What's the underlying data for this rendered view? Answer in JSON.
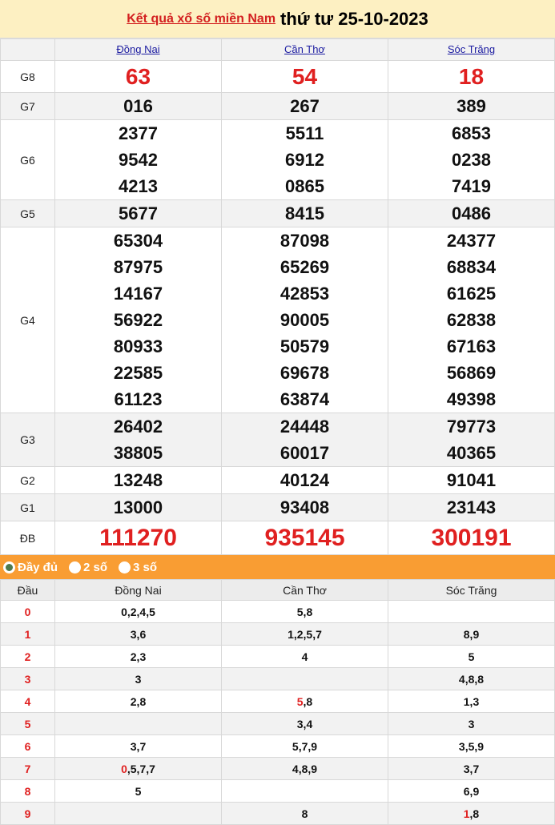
{
  "header": {
    "link": "Kết quả xổ số miền Nam",
    "date": "thứ tư 25-10-2023"
  },
  "provinces": [
    "Đồng Nai",
    "Cần Thơ",
    "Sóc Trăng"
  ],
  "prizes": [
    {
      "label": "G8",
      "values": [
        [
          "63"
        ],
        [
          "54"
        ],
        [
          "18"
        ]
      ]
    },
    {
      "label": "G7",
      "values": [
        [
          "016"
        ],
        [
          "267"
        ],
        [
          "389"
        ]
      ]
    },
    {
      "label": "G6",
      "values": [
        [
          "2377",
          "9542",
          "4213"
        ],
        [
          "5511",
          "6912",
          "0865"
        ],
        [
          "6853",
          "0238",
          "7419"
        ]
      ]
    },
    {
      "label": "G5",
      "values": [
        [
          "5677"
        ],
        [
          "8415"
        ],
        [
          "0486"
        ]
      ]
    },
    {
      "label": "G4",
      "values": [
        [
          "65304",
          "87975",
          "14167",
          "56922",
          "80933",
          "22585",
          "61123"
        ],
        [
          "87098",
          "65269",
          "42853",
          "90005",
          "50579",
          "69678",
          "63874"
        ],
        [
          "24377",
          "68834",
          "61625",
          "62838",
          "67163",
          "56869",
          "49398"
        ]
      ]
    },
    {
      "label": "G3",
      "values": [
        [
          "26402",
          "38805"
        ],
        [
          "24448",
          "60017"
        ],
        [
          "79773",
          "40365"
        ]
      ]
    },
    {
      "label": "G2",
      "values": [
        [
          "13248"
        ],
        [
          "40124"
        ],
        [
          "91041"
        ]
      ]
    },
    {
      "label": "G1",
      "values": [
        [
          "13000"
        ],
        [
          "93408"
        ],
        [
          "23143"
        ]
      ]
    },
    {
      "label": "ĐB",
      "values": [
        [
          "111270"
        ],
        [
          "935145"
        ],
        [
          "300191"
        ]
      ]
    }
  ],
  "filter": {
    "options": [
      "Đầy đủ",
      "2 số",
      "3 số"
    ],
    "selected": "Đầy đủ"
  },
  "loto": {
    "head_label": "Đầu",
    "provinces": [
      "Đồng Nai",
      "Cần Thơ",
      "Sóc Trăng"
    ],
    "rows": [
      {
        "d": "0",
        "cells": [
          {
            "hl": "",
            "rest": "0,2,4,5"
          },
          {
            "hl": "",
            "rest": "5,8"
          },
          {
            "hl": "",
            "rest": ""
          }
        ]
      },
      {
        "d": "1",
        "cells": [
          {
            "hl": "",
            "rest": "3,6"
          },
          {
            "hl": "",
            "rest": "1,2,5,7"
          },
          {
            "hl": "",
            "rest": "8,9"
          }
        ]
      },
      {
        "d": "2",
        "cells": [
          {
            "hl": "",
            "rest": "2,3"
          },
          {
            "hl": "",
            "rest": "4"
          },
          {
            "hl": "",
            "rest": "5"
          }
        ]
      },
      {
        "d": "3",
        "cells": [
          {
            "hl": "",
            "rest": "3"
          },
          {
            "hl": "",
            "rest": ""
          },
          {
            "hl": "",
            "rest": "4,8,8"
          }
        ]
      },
      {
        "d": "4",
        "cells": [
          {
            "hl": "",
            "rest": "2,8"
          },
          {
            "hl": "5",
            "rest": ",8"
          },
          {
            "hl": "",
            "rest": "1,3"
          }
        ]
      },
      {
        "d": "5",
        "cells": [
          {
            "hl": "",
            "rest": ""
          },
          {
            "hl": "",
            "rest": "3,4"
          },
          {
            "hl": "",
            "rest": "3"
          }
        ]
      },
      {
        "d": "6",
        "cells": [
          {
            "hl": "",
            "rest": "3,7"
          },
          {
            "hl": "",
            "rest": "5,7,9"
          },
          {
            "hl": "",
            "rest": "3,5,9"
          }
        ]
      },
      {
        "d": "7",
        "cells": [
          {
            "hl": "0",
            "rest": ",5,7,7"
          },
          {
            "hl": "",
            "rest": "4,8,9"
          },
          {
            "hl": "",
            "rest": "3,7"
          }
        ]
      },
      {
        "d": "8",
        "cells": [
          {
            "hl": "",
            "rest": "5"
          },
          {
            "hl": "",
            "rest": ""
          },
          {
            "hl": "",
            "rest": "6,9"
          }
        ]
      },
      {
        "d": "9",
        "cells": [
          {
            "hl": "",
            "rest": ""
          },
          {
            "hl": "",
            "rest": "8"
          },
          {
            "hl": "1",
            "rest": ",8"
          }
        ]
      }
    ]
  }
}
